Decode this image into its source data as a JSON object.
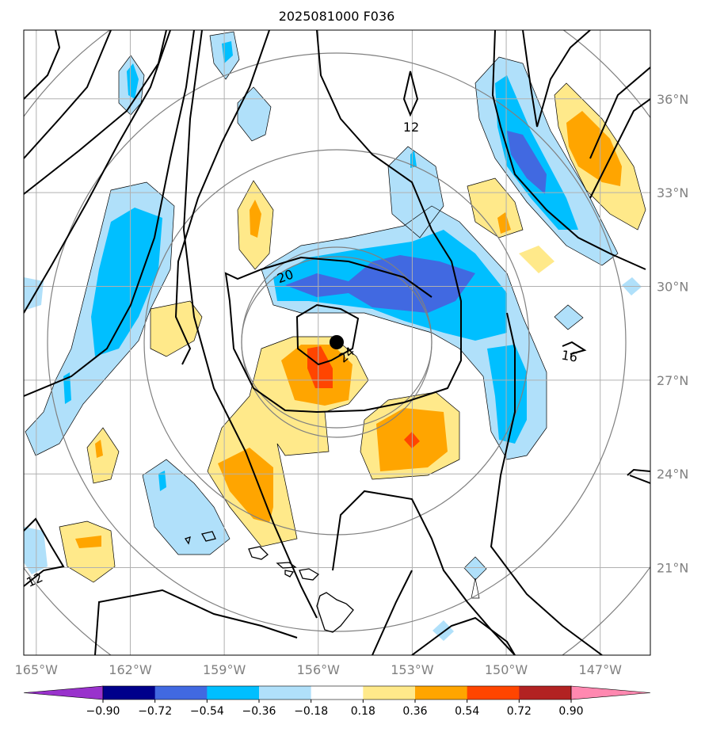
{
  "chart_data": {
    "type": "contour map",
    "title": "2025081000 F036",
    "x_ticks": [
      "165°W",
      "162°W",
      "159°W",
      "156°W",
      "153°W",
      "150°W",
      "147°W"
    ],
    "y_ticks": [
      "21°N",
      "24°N",
      "27°N",
      "30°N",
      "33°N",
      "36°N"
    ],
    "lon_values": [
      -165,
      -162,
      -159,
      -156,
      -153,
      -150,
      -147
    ],
    "lat_values": [
      21,
      24,
      27,
      30,
      33,
      36
    ],
    "lon_range": [
      -165.4,
      -145.4
    ],
    "lat_range": [
      18.2,
      38.2
    ],
    "grid": true,
    "storm_center": {
      "lon": -155.5,
      "lat": 28.2
    },
    "colorbar": {
      "levels": [
        "−0.90",
        "−0.72",
        "−0.54",
        "−0.36",
        "−0.18",
        "0.18",
        "0.36",
        "0.54",
        "0.72",
        "0.90"
      ],
      "colors": [
        "#9932cc",
        "#00008b",
        "#4169e1",
        "#00bfff",
        "#b0e0fa",
        "#ffffff",
        "#ffe98a",
        "#ffa500",
        "#ff4500",
        "#b22222",
        "#ff88b0"
      ],
      "extend": "both"
    },
    "contour_labels": [
      "20",
      "24",
      "12",
      "16",
      "12"
    ],
    "contour_label_values": [
      20,
      24,
      12,
      16,
      12
    ]
  }
}
